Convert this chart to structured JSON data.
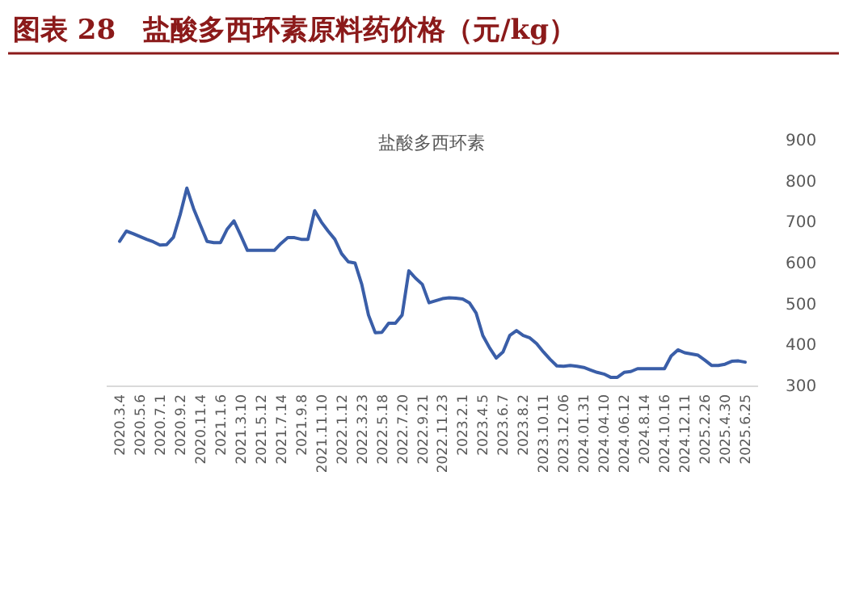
{
  "chart_data": {
    "type": "line",
    "title": "图表 28　盐酸多西环素原料药价格（元/kg）",
    "subtitle": "盐酸多西环素",
    "categories": [
      "2020.3.4",
      null,
      null,
      "2020.5.6",
      null,
      null,
      "2020.7.1",
      null,
      null,
      "2020.9.2",
      null,
      null,
      "2020.11.4",
      null,
      null,
      "2021.1.6",
      null,
      null,
      "2021.3.10",
      null,
      null,
      "2021.5.12",
      null,
      null,
      "2021.7.14",
      null,
      null,
      "2021.9.8",
      null,
      null,
      "2021.11.10",
      null,
      null,
      "2022.1.12",
      null,
      null,
      "2022.3.23",
      null,
      null,
      "2022.5.18",
      null,
      null,
      "2022.7.20",
      null,
      null,
      "2022.9.21",
      null,
      null,
      "2022.11.23",
      null,
      null,
      "2023.2.1",
      null,
      null,
      "2023.4.5",
      null,
      null,
      "2023.6.7",
      null,
      null,
      "2023.8.2",
      null,
      null,
      "2023.10.11",
      null,
      null,
      "2023.12.06",
      null,
      null,
      "2024.01.31",
      null,
      null,
      "2024.04.10",
      null,
      null,
      "2024.06.12",
      null,
      null,
      "2024.8.14",
      null,
      null,
      "2024.10.16",
      null,
      null,
      "2024.12.11",
      null,
      null,
      "2025.2.26",
      null,
      null,
      "2025.4.30",
      null,
      null,
      "2025.6.25"
    ],
    "series": [
      {
        "color": "#3a5ea8",
        "values": [
          650,
          675,
          669,
          662,
          655,
          649,
          641,
          642,
          660,
          715,
          780,
          730,
          690,
          650,
          647,
          647,
          680,
          700,
          665,
          628,
          628,
          628,
          628,
          628,
          645,
          659,
          659,
          655,
          655,
          725,
          697,
          675,
          655,
          620,
          600,
          597,
          545,
          470,
          427,
          428,
          450,
          450,
          470,
          578,
          560,
          545,
          500,
          505,
          510,
          512,
          511,
          509,
          500,
          475,
          420,
          390,
          365,
          380,
          420,
          432,
          420,
          414,
          400,
          380,
          362,
          346,
          345,
          347,
          345,
          342,
          336,
          330,
          326,
          318,
          318,
          330,
          332,
          339,
          339,
          339,
          339,
          339,
          370,
          385,
          378,
          375,
          372,
          360,
          347,
          347,
          350,
          357,
          358,
          355
        ]
      }
    ],
    "ylim": [
      300,
      900
    ],
    "yticks": [
      300,
      400,
      500,
      600,
      700,
      800,
      900
    ],
    "grid": false
  }
}
